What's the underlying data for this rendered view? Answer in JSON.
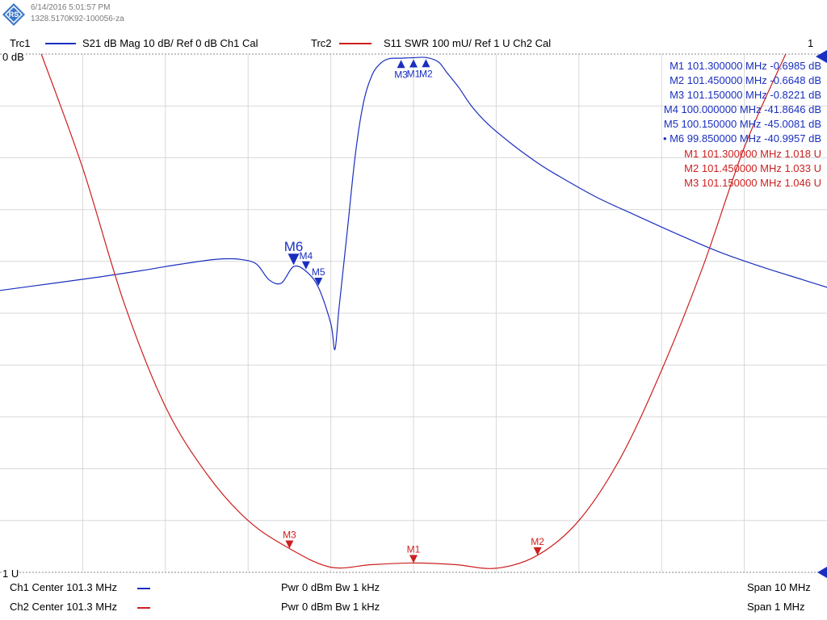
{
  "header": {
    "date": "6/14/2016 5:01:57 PM",
    "serial": "1328.5170K92-100056-za",
    "trc1": "Trc1",
    "trc1_desc": "S21  dB Mag  10 dB/ Ref 0 dB   Ch1  Cal",
    "trc2": "Trc2",
    "trc2_desc": "S11  SWR     100 mU/ Ref 1 U  Ch2  Cal",
    "window_number": "1"
  },
  "footer": {
    "ch1": "Ch1  Center  101.3 MHz",
    "ch1_pwr": "Pwr  0 dBm  Bw  1 kHz",
    "ch1_span": "Span  10 MHz",
    "ch2": "Ch2  Center  101.3 MHz",
    "ch2_pwr": "Pwr  0 dBm  Bw  1 kHz",
    "ch2_span": "Span  1 MHz"
  },
  "colors": {
    "trc1": "#1a2fbf",
    "trc2": "#cc1f1f",
    "grid": "#d8d8d8"
  },
  "markers_s21": [
    {
      "name": "M1",
      "freq": "101.300000  MHz",
      "value": "-0.6985  dB",
      "active": false
    },
    {
      "name": "M2",
      "freq": "101.450000  MHz",
      "value": "-0.6648  dB",
      "active": false
    },
    {
      "name": "M3",
      "freq": "101.150000  MHz",
      "value": "-0.8221  dB",
      "active": false
    },
    {
      "name": "M4",
      "freq": "100.000000  MHz",
      "value": "-41.8646  dB",
      "active": false
    },
    {
      "name": "M5",
      "freq": "100.150000  MHz",
      "value": "-45.0081  dB",
      "active": false
    },
    {
      "name": "M6",
      "freq": "99.850000  MHz",
      "value": "-40.9957  dB",
      "active": true
    }
  ],
  "markers_s11": [
    {
      "name": "M1",
      "freq": "101.300000  MHz",
      "value": "1.018  U"
    },
    {
      "name": "M2",
      "freq": "101.450000  MHz",
      "value": "1.033  U"
    },
    {
      "name": "M3",
      "freq": "101.150000  MHz",
      "value": "1.046  U"
    }
  ],
  "chart_data": {
    "type": "line",
    "x_divisions": 10,
    "y_divisions": 10,
    "ref_label_top": "0 dB",
    "ref_label_bottom": "1 U",
    "grid": true,
    "series": [
      {
        "name": "Trc1",
        "unit": "dB",
        "span_mhz": 10,
        "center_mhz": 101.3,
        "ylim": [
          -100,
          0
        ],
        "x": [
          96.3,
          97.0,
          97.5,
          98.0,
          98.3,
          98.5,
          98.8,
          99.0,
          99.2,
          99.4,
          99.55,
          99.7,
          99.85,
          100.0,
          100.15,
          100.3,
          100.35,
          100.4,
          100.5,
          100.6,
          100.7,
          100.8,
          100.9,
          101.0,
          101.15,
          101.3,
          101.45,
          101.6,
          101.7,
          101.85,
          102.0,
          102.2,
          102.5,
          102.8,
          103.0,
          103.5,
          104.0,
          104.5,
          105.0,
          105.5,
          106.0,
          106.3
        ],
        "y": [
          -45.6,
          -44.1,
          -43.0,
          -41.8,
          -41.0,
          -40.5,
          -39.8,
          -39.5,
          -39.6,
          -40.5,
          -43.5,
          -44.2,
          -41.0,
          -41.9,
          -45.0,
          -52.0,
          -57.0,
          -49.0,
          -34.0,
          -19.0,
          -9.0,
          -4.0,
          -1.8,
          -0.9,
          -0.8,
          -0.7,
          -0.66,
          -1.5,
          -3.5,
          -6.5,
          -10.0,
          -13.5,
          -17.5,
          -21.0,
          -23.0,
          -27.5,
          -31.2,
          -34.8,
          -38.2,
          -41.0,
          -43.5,
          -45.0
        ]
      },
      {
        "name": "Trc2",
        "unit": "U",
        "span_mhz": 1,
        "center_mhz": 101.3,
        "ylim": [
          1.0,
          2.0
        ],
        "x": [
          100.85,
          100.9,
          100.95,
          101.0,
          101.05,
          101.1,
          101.15,
          101.2,
          101.25,
          101.3,
          101.35,
          101.4,
          101.45,
          101.5,
          101.55,
          101.6,
          101.65,
          101.7,
          101.75
        ],
        "y": [
          2.0,
          1.78,
          1.52,
          1.32,
          1.19,
          1.1,
          1.046,
          1.01,
          1.015,
          1.018,
          1.015,
          1.008,
          1.033,
          1.1,
          1.22,
          1.39,
          1.59,
          1.82,
          2.0
        ]
      }
    ]
  }
}
